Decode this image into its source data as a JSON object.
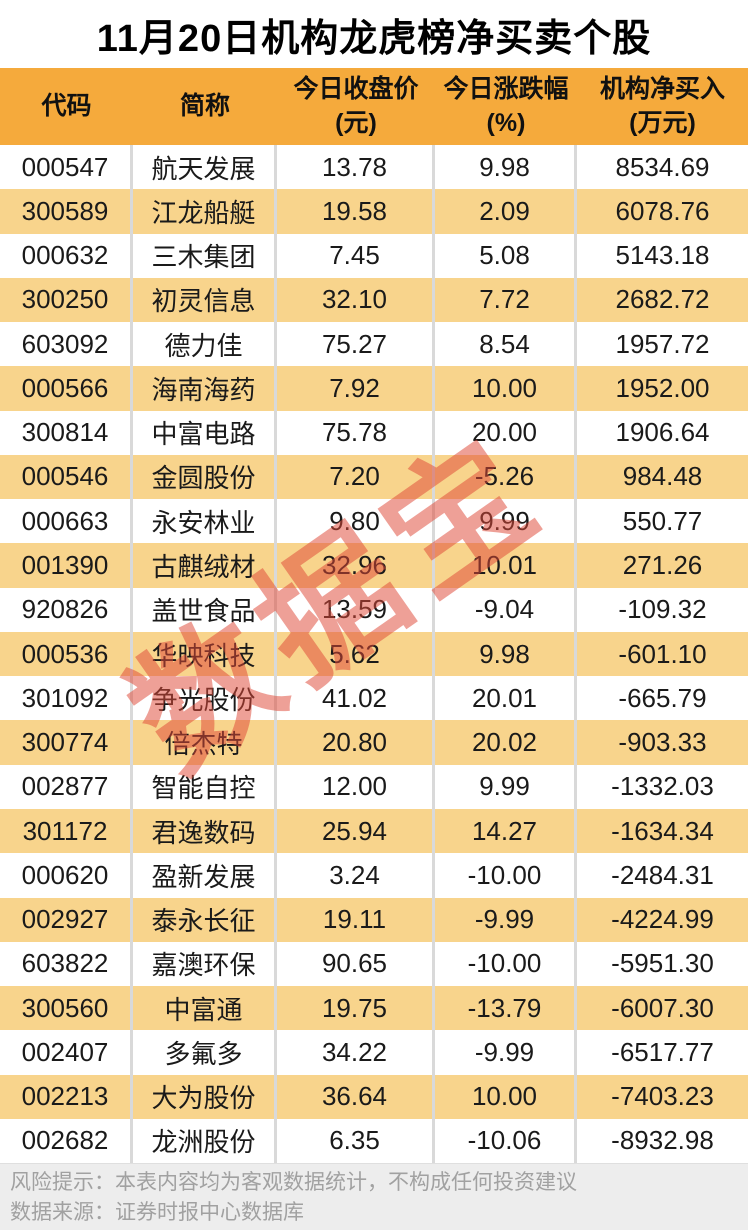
{
  "title": "11月20日机构龙虎榜净买卖个股",
  "watermark": "数据宝",
  "chart_data": {
    "type": "table",
    "title": "11月20日机构龙虎榜净买卖个股",
    "columns": [
      {
        "name": "代码",
        "unit": ""
      },
      {
        "name": "简称",
        "unit": ""
      },
      {
        "name": "今日收盘价",
        "unit": "(元)"
      },
      {
        "name": "今日涨跌幅",
        "unit": "(%)"
      },
      {
        "name": "机构净买入",
        "unit": "(万元)"
      }
    ],
    "rows": [
      [
        "000547",
        "航天发展",
        "13.78",
        "9.98",
        "8534.69"
      ],
      [
        "300589",
        "江龙船艇",
        "19.58",
        "2.09",
        "6078.76"
      ],
      [
        "000632",
        "三木集团",
        "7.45",
        "5.08",
        "5143.18"
      ],
      [
        "300250",
        "初灵信息",
        "32.10",
        "7.72",
        "2682.72"
      ],
      [
        "603092",
        "德力佳",
        "75.27",
        "8.54",
        "1957.72"
      ],
      [
        "000566",
        "海南海药",
        "7.92",
        "10.00",
        "1952.00"
      ],
      [
        "300814",
        "中富电路",
        "75.78",
        "20.00",
        "1906.64"
      ],
      [
        "000546",
        "金圆股份",
        "7.20",
        "-5.26",
        "984.48"
      ],
      [
        "000663",
        "永安林业",
        "9.80",
        "9.99",
        "550.77"
      ],
      [
        "001390",
        "古麒绒材",
        "32.96",
        "10.01",
        "271.26"
      ],
      [
        "920826",
        "盖世食品",
        "13.59",
        "-9.04",
        "-109.32"
      ],
      [
        "000536",
        "华映科技",
        "5.62",
        "9.98",
        "-601.10"
      ],
      [
        "301092",
        "争光股份",
        "41.02",
        "20.01",
        "-665.79"
      ],
      [
        "300774",
        "倍杰特",
        "20.80",
        "20.02",
        "-903.33"
      ],
      [
        "002877",
        "智能自控",
        "12.00",
        "9.99",
        "-1332.03"
      ],
      [
        "301172",
        "君逸数码",
        "25.94",
        "14.27",
        "-1634.34"
      ],
      [
        "000620",
        "盈新发展",
        "3.24",
        "-10.00",
        "-2484.31"
      ],
      [
        "002927",
        "泰永长征",
        "19.11",
        "-9.99",
        "-4224.99"
      ],
      [
        "603822",
        "嘉澳环保",
        "90.65",
        "-10.00",
        "-5951.30"
      ],
      [
        "300560",
        "中富通",
        "19.75",
        "-13.79",
        "-6007.30"
      ],
      [
        "002407",
        "多氟多",
        "34.22",
        "-9.99",
        "-6517.77"
      ],
      [
        "002213",
        "大为股份",
        "36.64",
        "10.00",
        "-7403.23"
      ],
      [
        "002682",
        "龙洲股份",
        "6.35",
        "-10.06",
        "-8932.98"
      ]
    ]
  },
  "footer": {
    "risk": "风险提示：本表内容均为客观数据统计，不构成任何投资建议",
    "source": "数据来源：证券时报中心数据库"
  },
  "colors": {
    "header_bg": "#F5AA3C",
    "row_alt_bg": "#F8D48C",
    "row_bg": "#FFFFFF",
    "divider": "#D9D9D9",
    "footer_bg": "#EDEDED",
    "footer_text": "#A1A1A1",
    "watermark_red": "#DE4837",
    "title_text": "#000000",
    "body_text": "#1A1A1A"
  }
}
